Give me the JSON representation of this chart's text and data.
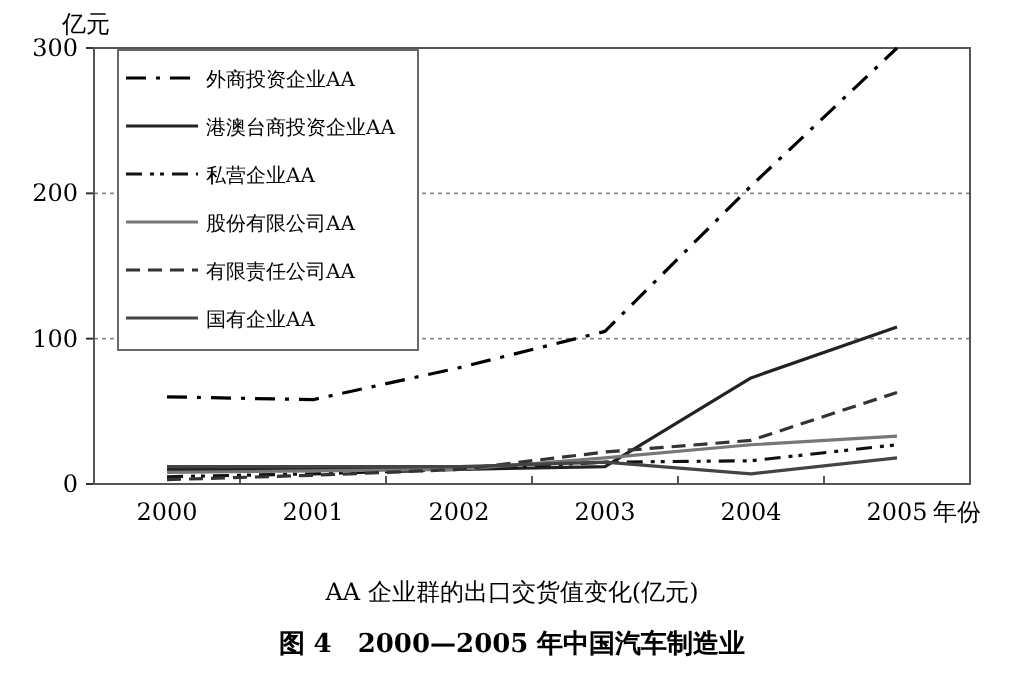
{
  "chart_data": {
    "type": "line",
    "title": "图 4　2000—2005 年中国汽车制造业",
    "subtitle": "AA 企业群的出口交货值变化(亿元)",
    "xlabel": "年份",
    "ylabel": "亿元",
    "categories": [
      "2000",
      "2001",
      "2002",
      "2003",
      "2004",
      "2005"
    ],
    "ylim": [
      0,
      300
    ],
    "yticks": [
      0,
      100,
      200,
      300
    ],
    "grid": "y",
    "legend": "top left",
    "marker": "none",
    "series": [
      {
        "name": "外商投资企业AA",
        "color": "#000000",
        "line_style": "dashdot",
        "values": [
          60,
          58,
          80,
          105,
          205,
          300
        ]
      },
      {
        "name": "港澳台商投资企业AA",
        "color": "#222222",
        "line_style": "solid",
        "values": [
          10,
          10,
          10,
          12,
          73,
          108
        ]
      },
      {
        "name": "私营企业AA",
        "color": "#111111",
        "line_style": "dashdotdot",
        "values": [
          5,
          7,
          10,
          15,
          16,
          27
        ]
      },
      {
        "name": "股份有限公司AA",
        "color": "#777777",
        "line_style": "solid",
        "values": [
          8,
          9,
          10,
          18,
          27,
          33
        ]
      },
      {
        "name": "有限责任公司AA",
        "color": "#333333",
        "line_style": "dashed",
        "values": [
          3,
          6,
          10,
          22,
          30,
          63
        ]
      },
      {
        "name": "国有企业AA",
        "color": "#444444",
        "line_style": "solid",
        "values": [
          12,
          12,
          12,
          15,
          7,
          18
        ]
      }
    ]
  }
}
